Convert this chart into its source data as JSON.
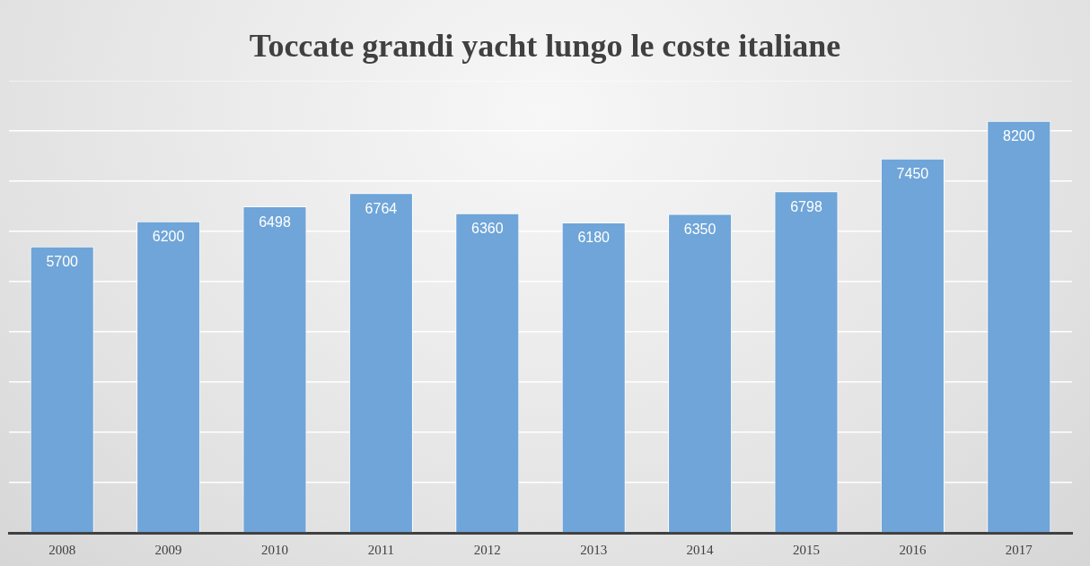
{
  "chart_data": {
    "type": "bar",
    "title": "Toccate grandi yacht lungo le coste italiane",
    "categories": [
      "2008",
      "2009",
      "2010",
      "2011",
      "2012",
      "2013",
      "2014",
      "2015",
      "2016",
      "2017"
    ],
    "values": [
      5700,
      6200,
      6498,
      6764,
      6360,
      6180,
      6350,
      6798,
      7450,
      8200
    ],
    "color": "#6fa5d8",
    "ylim": [
      0,
      9000
    ],
    "yticks": [
      {
        "value": 0,
        "label": null
      },
      {
        "value": 1000,
        "label": null
      },
      {
        "value": 2000,
        "label": null
      },
      {
        "value": 3000,
        "label": null
      },
      {
        "value": 4000,
        "label": null
      },
      {
        "value": 5000,
        "label": null
      },
      {
        "value": 6000,
        "label": null
      },
      {
        "value": 7000,
        "label": null
      },
      {
        "value": 8000,
        "label": null
      },
      {
        "value": 9000,
        "label": null
      }
    ],
    "grid": "y",
    "tick_labels": "x",
    "data_labels": true,
    "legend": false
  }
}
